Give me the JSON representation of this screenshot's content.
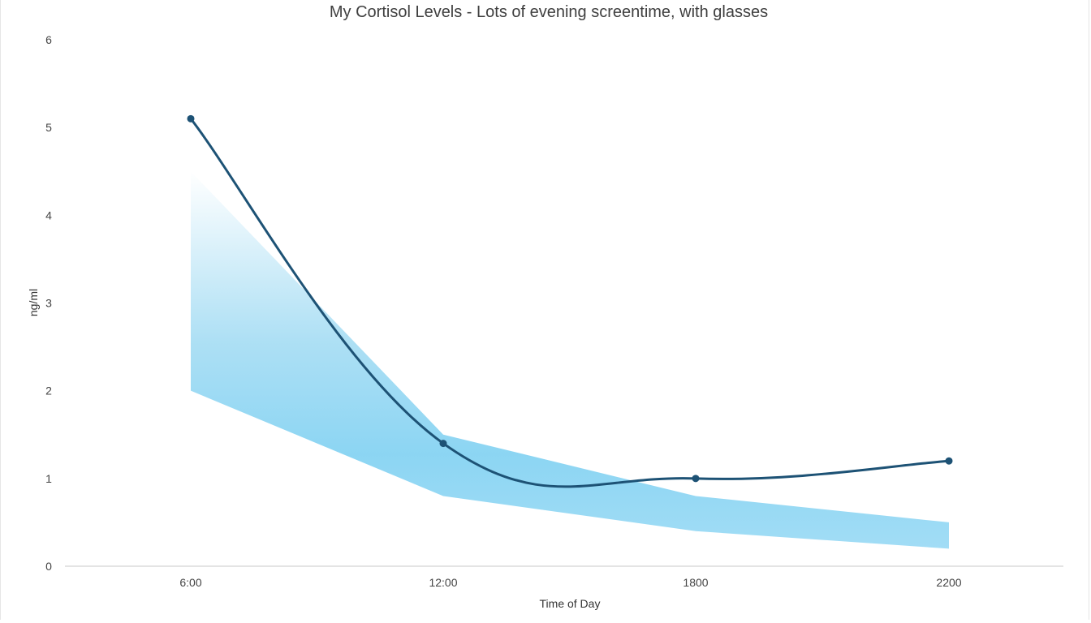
{
  "chart_data": {
    "type": "line",
    "title": "My Cortisol Levels - Lots of evening screentime, with glasses",
    "xlabel": "Time of Day",
    "ylabel": "ng/ml",
    "categories": [
      "6:00",
      "12:00",
      "1800",
      "2200"
    ],
    "yticks": [
      "0",
      "1",
      "2",
      "3",
      "4",
      "5",
      "6"
    ],
    "ylim": [
      0,
      6
    ],
    "grid": false,
    "legend": "none",
    "series": [
      {
        "values": [
          5.1,
          1.4,
          1.0,
          1.2
        ],
        "type": "line",
        "color": "#1d5275"
      }
    ],
    "band": {
      "type": "area-range",
      "upper": [
        4.5,
        1.5,
        0.8,
        0.5
      ],
      "lower": [
        2.0,
        0.8,
        0.4,
        0.2
      ],
      "color": "#7fd1f1"
    }
  }
}
